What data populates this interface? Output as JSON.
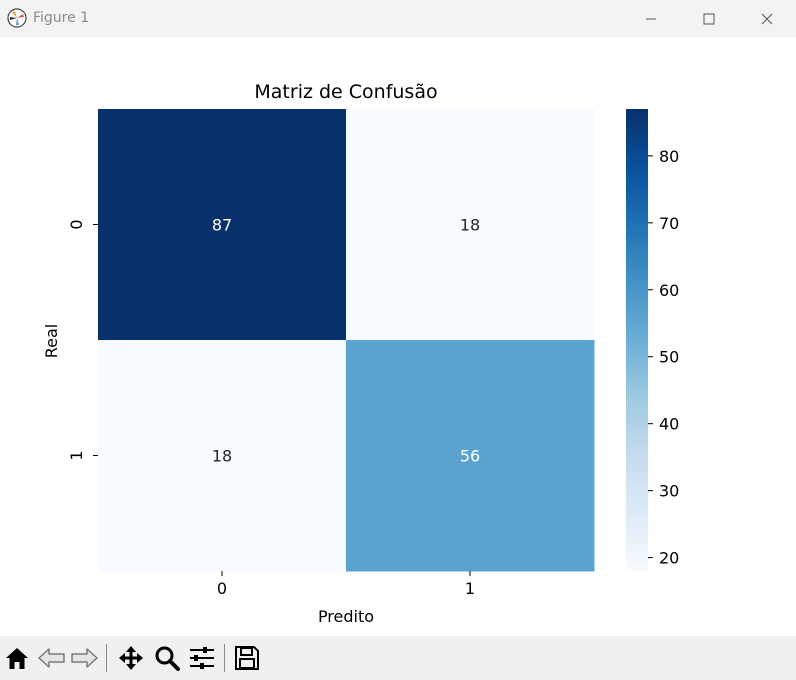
{
  "window": {
    "title": "Figure 1",
    "icons": [
      "app-icon",
      "minimize-icon",
      "maximize-icon",
      "close-icon"
    ]
  },
  "toolbar": {
    "tools": [
      "home-icon",
      "back-icon",
      "forward-icon",
      "pan-icon",
      "zoom-icon",
      "configure-subplots-icon",
      "save-icon"
    ]
  },
  "chart_data": {
    "type": "heatmap",
    "title": "Matriz de Confusão",
    "xlabel": "Predito",
    "ylabel": "Real",
    "x_categories": [
      "0",
      "1"
    ],
    "y_categories": [
      "0",
      "1"
    ],
    "values": [
      [
        87,
        18
      ],
      [
        18,
        56
      ]
    ],
    "colormap": "Blues",
    "colorbar": {
      "min": 18,
      "max": 87,
      "ticks": [
        20,
        30,
        40,
        50,
        60,
        70,
        80
      ]
    },
    "colors": {
      "low": "#f7fbff",
      "high": "#08306b"
    }
  }
}
